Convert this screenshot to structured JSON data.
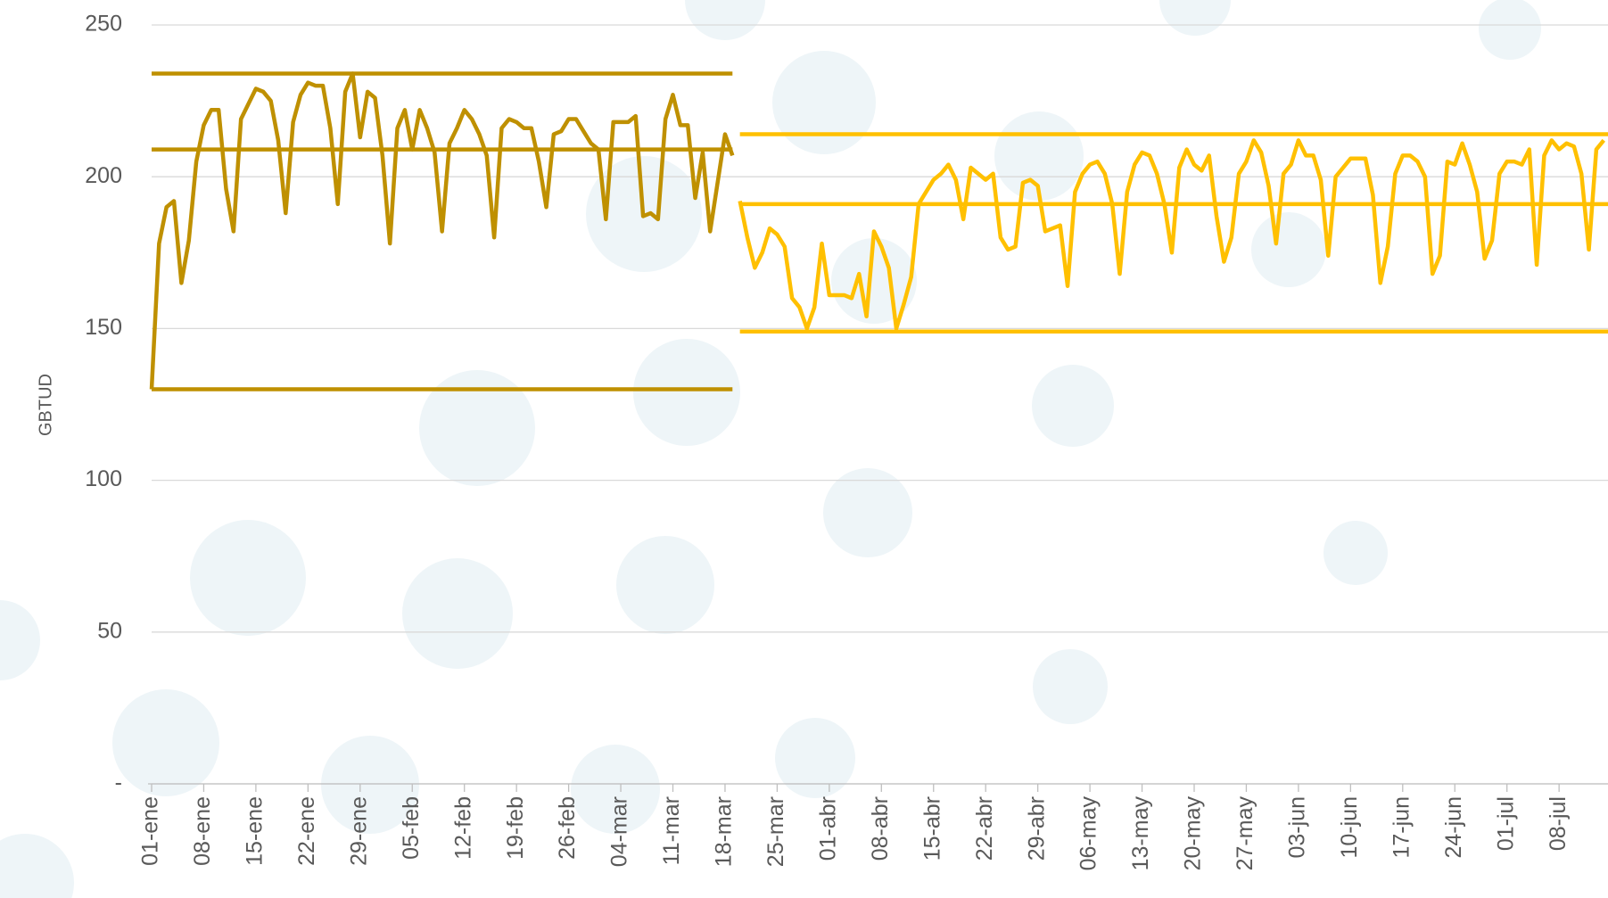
{
  "chart_data": {
    "type": "line",
    "y_label": "GBTUD",
    "ylim": [
      0,
      250
    ],
    "yticks": [
      {
        "value": 0,
        "label": "-"
      },
      50,
      100,
      150,
      200,
      250
    ],
    "grid": true,
    "categories": [
      "01-ene",
      null,
      null,
      null,
      null,
      null,
      null,
      "08-ene",
      null,
      null,
      null,
      null,
      null,
      null,
      "15-ene",
      null,
      null,
      null,
      null,
      null,
      null,
      "22-ene",
      null,
      null,
      null,
      null,
      null,
      null,
      "29-ene",
      null,
      null,
      null,
      null,
      null,
      null,
      "05-feb",
      null,
      null,
      null,
      null,
      null,
      null,
      "12-feb",
      null,
      null,
      null,
      null,
      null,
      null,
      "19-feb",
      null,
      null,
      null,
      null,
      null,
      null,
      "26-feb",
      null,
      null,
      null,
      null,
      null,
      null,
      "04-mar",
      null,
      null,
      null,
      null,
      null,
      null,
      "11-mar",
      null,
      null,
      null,
      null,
      null,
      null,
      "18-mar",
      null,
      null,
      null,
      null,
      null,
      null,
      "25-mar",
      null,
      null,
      null,
      null,
      null,
      null,
      "01-abr",
      null,
      null,
      null,
      null,
      null,
      null,
      "08-abr",
      null,
      null,
      null,
      null,
      null,
      null,
      "15-abr",
      null,
      null,
      null,
      null,
      null,
      null,
      "22-abr",
      null,
      null,
      null,
      null,
      null,
      null,
      "29-abr",
      null,
      null,
      null,
      null,
      null,
      null,
      "06-may",
      null,
      null,
      null,
      null,
      null,
      null,
      "13-may",
      null,
      null,
      null,
      null,
      null,
      null,
      "20-may",
      null,
      null,
      null,
      null,
      null,
      null,
      "27-may",
      null,
      null,
      null,
      null,
      null,
      null,
      "03-jun",
      null,
      null,
      null,
      null,
      null,
      null,
      "10-jun",
      null,
      null,
      null,
      null,
      null,
      null,
      "17-jun",
      null,
      null,
      null,
      null,
      null,
      null,
      "24-jun",
      null,
      null,
      null,
      null,
      null,
      null,
      "01-jul",
      null,
      null,
      null,
      null,
      null,
      null,
      "08-jul",
      null,
      null,
      null,
      null,
      null,
      null
    ],
    "series": [
      {
        "color": "#BF9000",
        "ref_lines": [
          234,
          209,
          130
        ],
        "values": [
          130,
          178,
          190,
          192,
          165,
          179,
          205,
          217,
          222,
          222,
          196,
          182,
          219,
          224,
          229,
          228,
          225,
          212,
          188,
          218,
          227,
          231,
          230,
          230,
          216,
          191,
          228,
          234,
          213,
          228,
          226,
          207,
          178,
          216,
          222,
          209,
          222,
          216,
          208,
          182,
          211,
          216,
          222,
          219,
          214,
          207,
          180,
          216,
          219,
          218,
          216,
          216,
          205,
          190,
          214,
          215,
          219,
          219,
          215,
          211,
          209,
          186,
          218,
          218,
          218,
          220,
          187,
          188,
          186,
          219,
          227,
          217,
          217,
          193,
          208,
          182,
          198,
          214,
          207,
          null,
          null,
          null,
          null,
          null,
          null,
          null,
          null,
          null,
          null,
          null,
          null,
          null,
          null,
          null,
          null,
          null,
          null,
          null,
          null,
          null,
          null,
          null,
          null,
          null,
          null,
          null,
          null,
          null,
          null,
          null,
          null,
          null,
          null,
          null,
          null,
          null,
          null,
          null,
          null,
          null,
          null,
          null,
          null,
          null,
          null,
          null,
          null,
          null,
          null,
          null,
          null,
          null,
          null,
          null,
          null,
          null,
          null,
          null,
          null,
          null,
          null,
          null,
          null,
          null,
          null,
          null,
          null,
          null,
          null,
          null,
          null,
          null,
          null,
          null,
          null,
          null,
          null,
          null,
          null,
          null,
          null,
          null,
          null,
          null,
          null,
          null,
          null,
          null,
          null,
          null,
          null,
          null,
          null,
          null,
          null,
          null,
          null,
          null,
          null,
          null,
          null,
          null,
          null,
          null,
          null,
          null,
          null,
          null,
          null,
          null,
          null,
          null,
          null,
          null,
          null,
          null
        ]
      },
      {
        "color": "#FFC000",
        "ref_lines": [
          214,
          191,
          149
        ],
        "values": [
          null,
          null,
          null,
          null,
          null,
          null,
          null,
          null,
          null,
          null,
          null,
          null,
          null,
          null,
          null,
          null,
          null,
          null,
          null,
          null,
          null,
          null,
          null,
          null,
          null,
          null,
          null,
          null,
          null,
          null,
          null,
          null,
          null,
          null,
          null,
          null,
          null,
          null,
          null,
          null,
          null,
          null,
          null,
          null,
          null,
          null,
          null,
          null,
          null,
          null,
          null,
          null,
          null,
          null,
          null,
          null,
          null,
          null,
          null,
          null,
          null,
          null,
          null,
          null,
          null,
          null,
          null,
          null,
          null,
          null,
          null,
          null,
          null,
          null,
          null,
          null,
          null,
          null,
          null,
          192,
          180,
          170,
          175,
          183,
          181,
          177,
          160,
          157,
          150,
          157,
          178,
          161,
          161,
          161,
          160,
          168,
          154,
          182,
          177,
          170,
          150,
          158,
          167,
          191,
          195,
          199,
          201,
          204,
          199,
          186,
          203,
          201,
          199,
          201,
          180,
          176,
          177,
          198,
          199,
          197,
          182,
          183,
          184,
          164,
          195,
          201,
          204,
          205,
          201,
          191,
          168,
          195,
          204,
          208,
          207,
          201,
          191,
          175,
          203,
          209,
          204,
          202,
          207,
          187,
          172,
          180,
          201,
          205,
          212,
          208,
          197,
          178,
          201,
          204,
          212,
          207,
          207,
          199,
          174,
          200,
          203,
          206,
          206,
          206,
          194,
          165,
          177,
          201,
          207,
          207,
          205,
          200,
          168,
          174,
          205,
          204,
          211,
          204,
          195,
          173,
          179,
          201,
          205,
          205,
          204,
          209,
          171,
          207,
          212,
          209,
          211,
          210,
          201,
          176,
          209,
          212
        ]
      }
    ]
  }
}
